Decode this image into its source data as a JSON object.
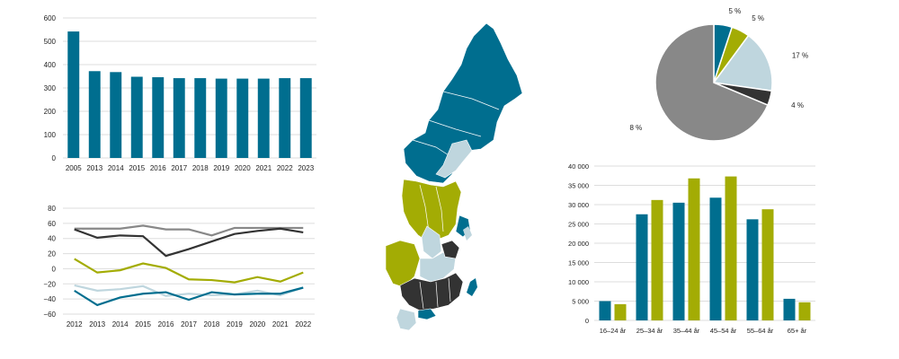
{
  "colors": {
    "teal": "#006e8f",
    "olive": "#a3ac04",
    "grey": "#888888",
    "dark": "#333333",
    "light": "#bfd6de",
    "grid": "#dddddd"
  },
  "chart_data": [
    {
      "id": "bar_top_left",
      "type": "bar",
      "categories": [
        "2005",
        "2013",
        "2014",
        "2015",
        "2016",
        "2017",
        "2018",
        "2019",
        "2020",
        "2021",
        "2022",
        "2023"
      ],
      "values": [
        542,
        372,
        368,
        348,
        346,
        342,
        342,
        340,
        340,
        340,
        342,
        342
      ],
      "ylim": [
        0,
        600
      ],
      "yticks": [
        "0",
        "100",
        "200",
        "300",
        "400",
        "500",
        "600"
      ],
      "grid": true,
      "color": "teal"
    },
    {
      "id": "line_bottom_left",
      "type": "line",
      "categories": [
        "2012",
        "2013",
        "2014",
        "2015",
        "2016",
        "2017",
        "2018",
        "2019",
        "2020",
        "2021",
        "2022"
      ],
      "ylim": [
        -60,
        80
      ],
      "yticks": [
        "−60",
        "−40",
        "−20",
        "0",
        "20",
        "40",
        "60",
        "80"
      ],
      "grid": true,
      "series": [
        {
          "color": "grey",
          "values": [
            53,
            53,
            53,
            57,
            52,
            52,
            44,
            54,
            54,
            54,
            54
          ]
        },
        {
          "color": "dark",
          "values": [
            52,
            41,
            44,
            43,
            17,
            26,
            36,
            46,
            50,
            53,
            48
          ]
        },
        {
          "color": "olive",
          "values": [
            13,
            -5,
            -2,
            7,
            1,
            -14,
            -15,
            -18,
            -11,
            -17,
            -5
          ]
        },
        {
          "color": "light",
          "values": [
            -22,
            -29,
            -27,
            -23,
            -36,
            -33,
            -35,
            -34,
            -29,
            -35,
            -25
          ]
        },
        {
          "color": "teal",
          "values": [
            -29,
            -48,
            -38,
            -33,
            -31,
            -41,
            -31,
            -34,
            -33,
            -33,
            -25
          ]
        }
      ]
    },
    {
      "id": "pie_top_right",
      "type": "pie",
      "slices": [
        {
          "value": 5,
          "label": "5 %",
          "color": "teal"
        },
        {
          "value": 5,
          "label": "5 %",
          "color": "olive"
        },
        {
          "value": 17,
          "label": "17 %",
          "color": "light"
        },
        {
          "value": 4,
          "label": "4 %",
          "color": "dark"
        },
        {
          "value": 68,
          "label": "68 %",
          "color": "grey"
        }
      ]
    },
    {
      "id": "bar_bottom_right",
      "type": "bar",
      "categories": [
        "16–24 år",
        "25–34 år",
        "35–44 år",
        "45–54 år",
        "55–64 år",
        "65+ år"
      ],
      "ylim": [
        0,
        40000
      ],
      "yticks": [
        "0",
        "5 000",
        "10 000",
        "15 000",
        "20 000",
        "25 000",
        "30 000",
        "35 000",
        "40 000"
      ],
      "grid": true,
      "series": [
        {
          "color": "teal",
          "values": [
            5000,
            27500,
            30500,
            31800,
            26200,
            5600
          ]
        },
        {
          "color": "olive",
          "values": [
            4200,
            31200,
            36800,
            37300,
            28800,
            4700
          ]
        }
      ]
    }
  ],
  "map": {
    "description_colors": [
      "teal",
      "light",
      "olive",
      "dark"
    ]
  }
}
